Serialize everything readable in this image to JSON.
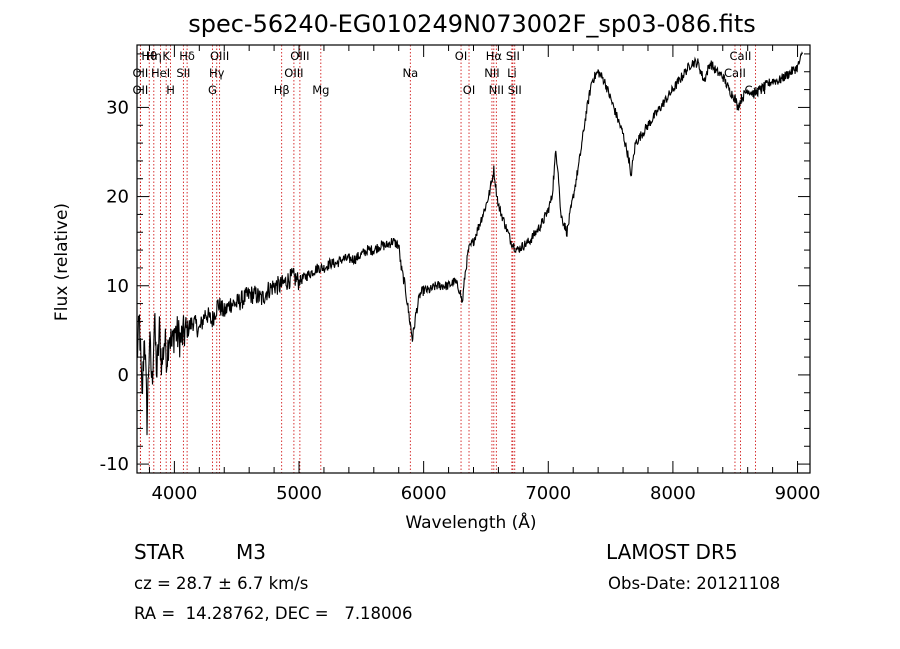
{
  "chart_data": {
    "type": "line",
    "title": "spec-56240-EG010249N073002F_sp03-086.fits",
    "xlabel": "Wavelength (Å)",
    "ylabel": "Flux (relative)",
    "xlim": [
      3700,
      9100
    ],
    "ylim": [
      -11,
      37
    ],
    "xticks": [
      4000,
      5000,
      6000,
      7000,
      8000,
      9000
    ],
    "yticks": [
      -10,
      0,
      10,
      20,
      30
    ],
    "line_color": "#000000",
    "marker_color": "#cc0000",
    "spectral_lines": [
      {
        "label": "Hθ",
        "wavelength": 3798
      },
      {
        "label": "OII",
        "wavelength": 3727
      },
      {
        "label": "OII",
        "wavelength": 3727
      },
      {
        "label": "Hη",
        "wavelength": 3835
      },
      {
        "label": "K",
        "wavelength": 3934
      },
      {
        "label": "HeI",
        "wavelength": 3889
      },
      {
        "label": "H",
        "wavelength": 3969
      },
      {
        "label": "Hδ",
        "wavelength": 4102
      },
      {
        "label": "SII",
        "wavelength": 4072
      },
      {
        "label": "OIII",
        "wavelength": 4363
      },
      {
        "label": "Hγ",
        "wavelength": 4340
      },
      {
        "label": "G",
        "wavelength": 4305
      },
      {
        "label": "OIII",
        "wavelength": 5007
      },
      {
        "label": "OIII",
        "wavelength": 4959
      },
      {
        "label": "Hβ",
        "wavelength": 4861
      },
      {
        "label": "Mg",
        "wavelength": 5175
      },
      {
        "label": "Na",
        "wavelength": 5893
      },
      {
        "label": "OI",
        "wavelength": 6300
      },
      {
        "label": "OI",
        "wavelength": 6364
      },
      {
        "label": "Hα",
        "wavelength": 6563
      },
      {
        "label": "NII",
        "wavelength": 6548
      },
      {
        "label": "NII",
        "wavelength": 6583
      },
      {
        "label": "SII",
        "wavelength": 6716
      },
      {
        "label": "Li",
        "wavelength": 6708
      },
      {
        "label": "SII",
        "wavelength": 6731
      },
      {
        "label": "CaII",
        "wavelength": 8542
      },
      {
        "label": "CaII",
        "wavelength": 8498
      },
      {
        "label": "CaII",
        "wavelength": 8662
      }
    ],
    "series": [
      {
        "points": [
          [
            3700,
            2
          ],
          [
            3720,
            6
          ],
          [
            3740,
            -3
          ],
          [
            3760,
            5
          ],
          [
            3780,
            -5
          ],
          [
            3800,
            4
          ],
          [
            3820,
            -1
          ],
          [
            3840,
            6
          ],
          [
            3860,
            0
          ],
          [
            3880,
            5
          ],
          [
            3900,
            1
          ],
          [
            3920,
            4
          ],
          [
            3940,
            2
          ],
          [
            3960,
            5
          ],
          [
            3980,
            3
          ],
          [
            4000,
            5
          ],
          [
            4050,
            4
          ],
          [
            4100,
            5
          ],
          [
            4150,
            6
          ],
          [
            4200,
            5
          ],
          [
            4250,
            7
          ],
          [
            4300,
            6
          ],
          [
            4350,
            8
          ],
          [
            4400,
            7
          ],
          [
            4450,
            8
          ],
          [
            4500,
            8
          ],
          [
            4550,
            8.5
          ],
          [
            4600,
            9
          ],
          [
            4650,
            9
          ],
          [
            4700,
            8.5
          ],
          [
            4750,
            9.5
          ],
          [
            4800,
            10
          ],
          [
            4850,
            10
          ],
          [
            4900,
            10.5
          ],
          [
            4950,
            11
          ],
          [
            5000,
            10.5
          ],
          [
            5050,
            11
          ],
          [
            5100,
            11.5
          ],
          [
            5150,
            12
          ],
          [
            5200,
            12
          ],
          [
            5250,
            12.5
          ],
          [
            5300,
            12.5
          ],
          [
            5350,
            13
          ],
          [
            5400,
            13
          ],
          [
            5450,
            13
          ],
          [
            5500,
            13.5
          ],
          [
            5550,
            14
          ],
          [
            5600,
            14
          ],
          [
            5650,
            14.5
          ],
          [
            5700,
            14.5
          ],
          [
            5750,
            15
          ],
          [
            5800,
            14.5
          ],
          [
            5820,
            12
          ],
          [
            5850,
            10
          ],
          [
            5870,
            8
          ],
          [
            5890,
            6
          ],
          [
            5900,
            5
          ],
          [
            5910,
            4
          ],
          [
            5920,
            5
          ],
          [
            5940,
            7
          ],
          [
            5970,
            9
          ],
          [
            6000,
            9.5
          ],
          [
            6050,
            9.5
          ],
          [
            6100,
            10
          ],
          [
            6150,
            10
          ],
          [
            6200,
            10
          ],
          [
            6250,
            10.5
          ],
          [
            6290,
            9.5
          ],
          [
            6310,
            8
          ],
          [
            6330,
            11
          ],
          [
            6360,
            14
          ],
          [
            6400,
            15
          ],
          [
            6450,
            17
          ],
          [
            6500,
            19
          ],
          [
            6530,
            20.5
          ],
          [
            6563,
            23
          ],
          [
            6580,
            21
          ],
          [
            6600,
            19
          ],
          [
            6650,
            17
          ],
          [
            6700,
            15
          ],
          [
            6750,
            14
          ],
          [
            6800,
            14.5
          ],
          [
            6850,
            15
          ],
          [
            6900,
            16
          ],
          [
            6950,
            17
          ],
          [
            7000,
            18.5
          ],
          [
            7030,
            20
          ],
          [
            7060,
            25
          ],
          [
            7080,
            23
          ],
          [
            7100,
            18
          ],
          [
            7150,
            16
          ],
          [
            7200,
            20
          ],
          [
            7250,
            24
          ],
          [
            7300,
            29
          ],
          [
            7350,
            33
          ],
          [
            7400,
            34
          ],
          [
            7450,
            33
          ],
          [
            7500,
            31
          ],
          [
            7550,
            29
          ],
          [
            7600,
            27
          ],
          [
            7650,
            24
          ],
          [
            7660,
            22
          ],
          [
            7700,
            26
          ],
          [
            7750,
            27
          ],
          [
            7800,
            28
          ],
          [
            7850,
            29
          ],
          [
            7900,
            30
          ],
          [
            7950,
            31
          ],
          [
            8000,
            32
          ],
          [
            8050,
            33
          ],
          [
            8100,
            34
          ],
          [
            8150,
            35
          ],
          [
            8200,
            35
          ],
          [
            8250,
            33
          ],
          [
            8300,
            35
          ],
          [
            8350,
            34
          ],
          [
            8400,
            33.5
          ],
          [
            8450,
            32
          ],
          [
            8500,
            31
          ],
          [
            8520,
            30
          ],
          [
            8550,
            31
          ],
          [
            8600,
            32
          ],
          [
            8650,
            31.5
          ],
          [
            8700,
            32
          ],
          [
            8750,
            32.5
          ],
          [
            8800,
            33
          ],
          [
            8850,
            33
          ],
          [
            8900,
            33.5
          ],
          [
            8950,
            34
          ],
          [
            9000,
            34.5
          ],
          [
            9040,
            36
          ]
        ]
      }
    ]
  },
  "info": {
    "object_class": "STAR",
    "subclass": "M3",
    "survey": "LAMOST DR5",
    "cz": "cz = 28.7 ± 6.7 km/s",
    "obs_date": "Obs-Date: 20121108",
    "coords": "RA =  14.28762, DEC =   7.18006"
  }
}
